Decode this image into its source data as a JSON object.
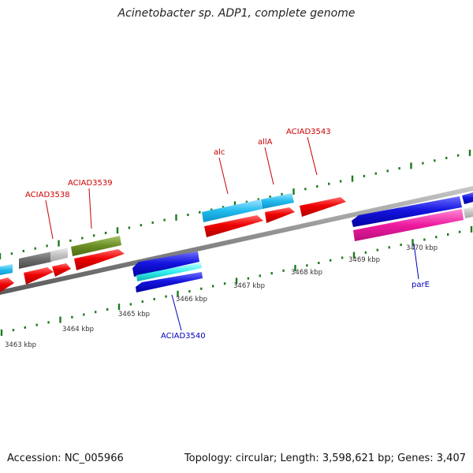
{
  "title": "Acinetobacter sp. ADP1, complete genome",
  "accession_text": "Accession: NC_005966",
  "summary_text": "Topology: circular; Length: 3,598,621 bp; Genes: 3,407",
  "colors": {
    "backbone": "#8a8a8a",
    "tick": "#1e7a1e",
    "label_red": "#cc0000",
    "label_blue": "#0000bb",
    "scale_text": "#333333"
  },
  "scale_labels": [
    "3463 kbp",
    "3464 kbp",
    "3465 kbp",
    "3466 kbp",
    "3467 kbp",
    "3468 kbp",
    "3469 kbp",
    "3470 kbp"
  ],
  "gene_labels": [
    {
      "text": "ACIAD3538",
      "color": "red"
    },
    {
      "text": "ACIAD3539",
      "color": "red"
    },
    {
      "text": "alc",
      "color": "red"
    },
    {
      "text": "allA",
      "color": "red"
    },
    {
      "text": "ACIAD3543",
      "color": "red"
    },
    {
      "text": "ACIAD3540",
      "color": "blue"
    },
    {
      "text": "parE",
      "color": "blue"
    }
  ]
}
